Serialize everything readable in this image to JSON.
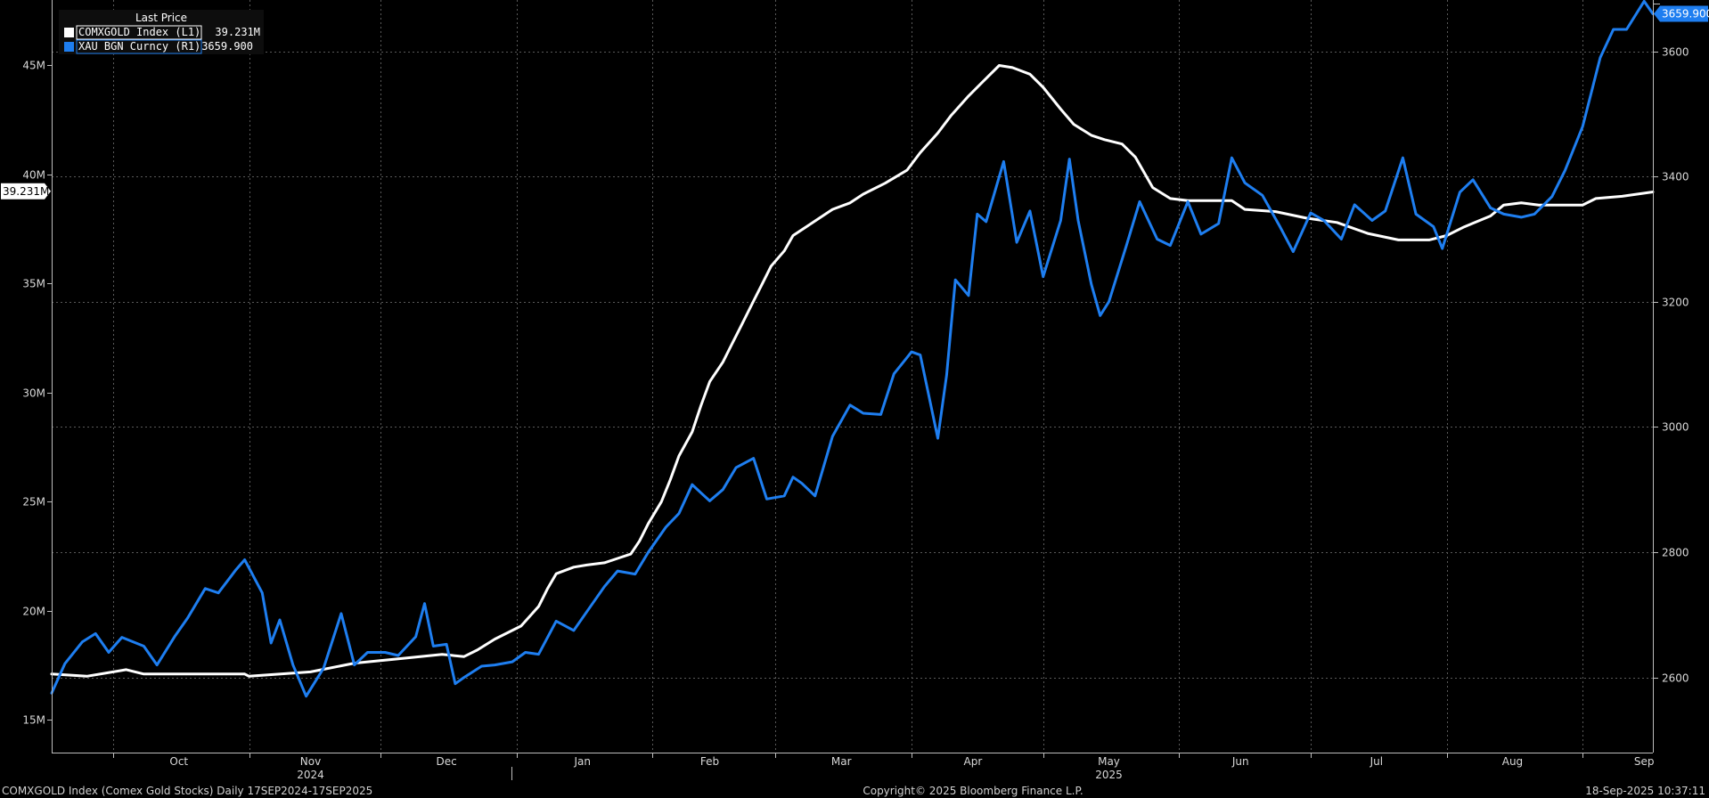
{
  "chart_data": {
    "type": "line",
    "legend": {
      "header": "Last Price",
      "placement": "top-left",
      "entries": [
        {
          "label": "COMXGOLD Index  (L1)",
          "value": "39.231M",
          "color": "#ffffff"
        },
        {
          "label": "XAU BGN Curncy  (R1)",
          "value": "3659.900",
          "color": "#1e7ef0"
        }
      ]
    },
    "x_range": [
      "2024-09-17",
      "2025-09-17"
    ],
    "month_ticks": [
      {
        "label": "Oct",
        "date": "2024-10-16"
      },
      {
        "label": "Nov",
        "date": "2024-11-15"
      },
      {
        "label": "Dec",
        "date": "2024-12-16"
      },
      {
        "label": "Jan",
        "date": "2025-01-16"
      },
      {
        "label": "Feb",
        "date": "2025-02-14"
      },
      {
        "label": "Mar",
        "date": "2025-03-16"
      },
      {
        "label": "Apr",
        "date": "2025-04-15"
      },
      {
        "label": "May",
        "date": "2025-05-16"
      },
      {
        "label": "Jun",
        "date": "2025-06-15"
      },
      {
        "label": "Jul",
        "date": "2025-07-16"
      },
      {
        "label": "Aug",
        "date": "2025-08-16"
      },
      {
        "label": "Sep",
        "date": "2025-09-15"
      }
    ],
    "month_boundaries": [
      "2024-10-01",
      "2024-11-01",
      "2024-12-01",
      "2025-01-01",
      "2025-02-01",
      "2025-03-01",
      "2025-04-01",
      "2025-05-01",
      "2025-06-01",
      "2025-07-01",
      "2025-08-01",
      "2025-09-01"
    ],
    "year_labels": [
      {
        "label": "2024",
        "date": "2024-11-15"
      },
      {
        "label": "2025",
        "date": "2025-05-16"
      }
    ],
    "left_axis": {
      "ylim": [
        13.5,
        48
      ],
      "ticks": [
        15,
        20,
        25,
        30,
        35,
        40,
        45
      ],
      "tick_labels": [
        "15M",
        "20M",
        "25M",
        "30M",
        "35M",
        "40M",
        "45M"
      ]
    },
    "right_axis": {
      "ylim": [
        2480,
        3682
      ],
      "ticks": [
        2600,
        2800,
        3000,
        3200,
        3400,
        3600
      ],
      "tick_labels": [
        "2600",
        "2800",
        "3000",
        "3200",
        "3400",
        "3600"
      ]
    },
    "grid": true,
    "last_value_tags": [
      {
        "series": "COMXGOLD Index",
        "text": "39.231M",
        "axis": "left",
        "value": 39.231
      },
      {
        "series": "XAU BGN Curncy",
        "text": "3659.900",
        "axis": "right",
        "value": 3659.9
      }
    ],
    "series": [
      {
        "name": "COMXGOLD Index",
        "axis": "left",
        "color": "#ffffff",
        "points": [
          [
            "2024-09-17",
            17.1
          ],
          [
            "2024-09-25",
            17.0
          ],
          [
            "2024-10-01",
            17.2
          ],
          [
            "2024-10-04",
            17.3
          ],
          [
            "2024-10-08",
            17.1
          ],
          [
            "2024-10-31",
            17.1
          ],
          [
            "2024-11-01",
            17.0
          ],
          [
            "2024-11-15",
            17.2
          ],
          [
            "2024-11-25",
            17.6
          ],
          [
            "2024-12-05",
            17.8
          ],
          [
            "2024-12-10",
            17.9
          ],
          [
            "2024-12-15",
            18.0
          ],
          [
            "2024-12-20",
            17.9
          ],
          [
            "2024-12-23",
            18.2
          ],
          [
            "2024-12-27",
            18.7
          ],
          [
            "2025-01-02",
            19.3
          ],
          [
            "2025-01-06",
            20.2
          ],
          [
            "2025-01-08",
            21.0
          ],
          [
            "2025-01-10",
            21.7
          ],
          [
            "2025-01-14",
            22.0
          ],
          [
            "2025-01-17",
            22.1
          ],
          [
            "2025-01-21",
            22.2
          ],
          [
            "2025-01-24",
            22.4
          ],
          [
            "2025-01-27",
            22.6
          ],
          [
            "2025-01-29",
            23.2
          ],
          [
            "2025-01-31",
            24.0
          ],
          [
            "2025-02-03",
            25.0
          ],
          [
            "2025-02-05",
            26.0
          ],
          [
            "2025-02-07",
            27.1
          ],
          [
            "2025-02-10",
            28.2
          ],
          [
            "2025-02-12",
            29.4
          ],
          [
            "2025-02-14",
            30.5
          ],
          [
            "2025-02-17",
            31.4
          ],
          [
            "2025-02-19",
            32.2
          ],
          [
            "2025-02-21",
            33.0
          ],
          [
            "2025-02-24",
            34.2
          ],
          [
            "2025-02-26",
            35.0
          ],
          [
            "2025-02-28",
            35.8
          ],
          [
            "2025-03-03",
            36.5
          ],
          [
            "2025-03-05",
            37.2
          ],
          [
            "2025-03-08",
            37.6
          ],
          [
            "2025-03-11",
            38.0
          ],
          [
            "2025-03-14",
            38.4
          ],
          [
            "2025-03-18",
            38.7
          ],
          [
            "2025-03-21",
            39.1
          ],
          [
            "2025-03-26",
            39.6
          ],
          [
            "2025-03-31",
            40.2
          ],
          [
            "2025-04-03",
            41.0
          ],
          [
            "2025-04-07",
            41.9
          ],
          [
            "2025-04-10",
            42.7
          ],
          [
            "2025-04-14",
            43.6
          ],
          [
            "2025-04-17",
            44.2
          ],
          [
            "2025-04-21",
            45.0
          ],
          [
            "2025-04-24",
            44.9
          ],
          [
            "2025-04-28",
            44.6
          ],
          [
            "2025-05-01",
            44.0
          ],
          [
            "2025-05-05",
            43.0
          ],
          [
            "2025-05-08",
            42.3
          ],
          [
            "2025-05-12",
            41.8
          ],
          [
            "2025-05-15",
            41.6
          ],
          [
            "2025-05-19",
            41.4
          ],
          [
            "2025-05-22",
            40.8
          ],
          [
            "2025-05-26",
            39.4
          ],
          [
            "2025-05-30",
            38.9
          ],
          [
            "2025-06-03",
            38.8
          ],
          [
            "2025-06-09",
            38.8
          ],
          [
            "2025-06-13",
            38.8
          ],
          [
            "2025-06-16",
            38.4
          ],
          [
            "2025-06-23",
            38.3
          ],
          [
            "2025-06-30",
            38.0
          ],
          [
            "2025-07-07",
            37.8
          ],
          [
            "2025-07-14",
            37.3
          ],
          [
            "2025-07-21",
            37.0
          ],
          [
            "2025-07-28",
            37.0
          ],
          [
            "2025-08-01",
            37.2
          ],
          [
            "2025-08-05",
            37.6
          ],
          [
            "2025-08-11",
            38.1
          ],
          [
            "2025-08-14",
            38.6
          ],
          [
            "2025-08-18",
            38.7
          ],
          [
            "2025-08-22",
            38.6
          ],
          [
            "2025-09-01",
            38.6
          ],
          [
            "2025-09-04",
            38.9
          ],
          [
            "2025-09-10",
            39.0
          ],
          [
            "2025-09-17",
            39.2
          ]
        ]
      },
      {
        "name": "XAU BGN Curncy",
        "axis": "right",
        "color": "#1e7ef0",
        "points": [
          [
            "2024-09-17",
            2575
          ],
          [
            "2024-09-20",
            2622
          ],
          [
            "2024-09-24",
            2657
          ],
          [
            "2024-09-27",
            2670
          ],
          [
            "2024-09-30",
            2640
          ],
          [
            "2024-10-03",
            2664
          ],
          [
            "2024-10-08",
            2650
          ],
          [
            "2024-10-11",
            2620
          ],
          [
            "2024-10-15",
            2665
          ],
          [
            "2024-10-18",
            2695
          ],
          [
            "2024-10-22",
            2742
          ],
          [
            "2024-10-25",
            2735
          ],
          [
            "2024-10-29",
            2772
          ],
          [
            "2024-10-31",
            2788
          ],
          [
            "2024-11-04",
            2735
          ],
          [
            "2024-11-06",
            2655
          ],
          [
            "2024-11-08",
            2692
          ],
          [
            "2024-11-11",
            2620
          ],
          [
            "2024-11-14",
            2570
          ],
          [
            "2024-11-18",
            2615
          ],
          [
            "2024-11-22",
            2702
          ],
          [
            "2024-11-25",
            2620
          ],
          [
            "2024-11-28",
            2640
          ],
          [
            "2024-12-02",
            2640
          ],
          [
            "2024-12-05",
            2635
          ],
          [
            "2024-12-09",
            2665
          ],
          [
            "2024-12-11",
            2718
          ],
          [
            "2024-12-13",
            2650
          ],
          [
            "2024-12-16",
            2653
          ],
          [
            "2024-12-18",
            2590
          ],
          [
            "2024-12-20",
            2600
          ],
          [
            "2024-12-24",
            2618
          ],
          [
            "2024-12-27",
            2620
          ],
          [
            "2024-12-31",
            2625
          ],
          [
            "2025-01-03",
            2640
          ],
          [
            "2025-01-06",
            2637
          ],
          [
            "2025-01-10",
            2690
          ],
          [
            "2025-01-14",
            2675
          ],
          [
            "2025-01-17",
            2705
          ],
          [
            "2025-01-21",
            2745
          ],
          [
            "2025-01-24",
            2770
          ],
          [
            "2025-01-28",
            2765
          ],
          [
            "2025-01-31",
            2800
          ],
          [
            "2025-02-04",
            2840
          ],
          [
            "2025-02-07",
            2862
          ],
          [
            "2025-02-10",
            2908
          ],
          [
            "2025-02-12",
            2895
          ],
          [
            "2025-02-14",
            2882
          ],
          [
            "2025-02-17",
            2900
          ],
          [
            "2025-02-20",
            2935
          ],
          [
            "2025-02-24",
            2950
          ],
          [
            "2025-02-27",
            2885
          ],
          [
            "2025-03-03",
            2890
          ],
          [
            "2025-03-05",
            2920
          ],
          [
            "2025-03-07",
            2910
          ],
          [
            "2025-03-10",
            2890
          ],
          [
            "2025-03-14",
            2985
          ],
          [
            "2025-03-18",
            3035
          ],
          [
            "2025-03-21",
            3022
          ],
          [
            "2025-03-25",
            3020
          ],
          [
            "2025-03-28",
            3085
          ],
          [
            "2025-04-01",
            3120
          ],
          [
            "2025-04-03",
            3115
          ],
          [
            "2025-04-07",
            2982
          ],
          [
            "2025-04-09",
            3083
          ],
          [
            "2025-04-11",
            3235
          ],
          [
            "2025-04-14",
            3210
          ],
          [
            "2025-04-16",
            3340
          ],
          [
            "2025-04-18",
            3328
          ],
          [
            "2025-04-22",
            3424
          ],
          [
            "2025-04-25",
            3295
          ],
          [
            "2025-04-28",
            3345
          ],
          [
            "2025-05-01",
            3240
          ],
          [
            "2025-05-05",
            3330
          ],
          [
            "2025-05-07",
            3428
          ],
          [
            "2025-05-09",
            3330
          ],
          [
            "2025-05-12",
            3228
          ],
          [
            "2025-05-14",
            3178
          ],
          [
            "2025-05-16",
            3200
          ],
          [
            "2025-05-20",
            3290
          ],
          [
            "2025-05-23",
            3360
          ],
          [
            "2025-05-27",
            3300
          ],
          [
            "2025-05-30",
            3290
          ],
          [
            "2025-06-03",
            3360
          ],
          [
            "2025-06-06",
            3308
          ],
          [
            "2025-06-10",
            3325
          ],
          [
            "2025-06-13",
            3430
          ],
          [
            "2025-06-16",
            3390
          ],
          [
            "2025-06-20",
            3370
          ],
          [
            "2025-06-24",
            3320
          ],
          [
            "2025-06-27",
            3280
          ],
          [
            "2025-07-01",
            3342
          ],
          [
            "2025-07-04",
            3330
          ],
          [
            "2025-07-08",
            3300
          ],
          [
            "2025-07-11",
            3355
          ],
          [
            "2025-07-15",
            3330
          ],
          [
            "2025-07-18",
            3345
          ],
          [
            "2025-07-22",
            3430
          ],
          [
            "2025-07-25",
            3340
          ],
          [
            "2025-07-29",
            3320
          ],
          [
            "2025-07-31",
            3285
          ],
          [
            "2025-08-04",
            3375
          ],
          [
            "2025-08-07",
            3395
          ],
          [
            "2025-08-11",
            3350
          ],
          [
            "2025-08-14",
            3340
          ],
          [
            "2025-08-18",
            3335
          ],
          [
            "2025-08-21",
            3340
          ],
          [
            "2025-08-25",
            3368
          ],
          [
            "2025-08-28",
            3410
          ],
          [
            "2025-09-01",
            3480
          ],
          [
            "2025-09-03",
            3535
          ],
          [
            "2025-09-05",
            3590
          ],
          [
            "2025-09-08",
            3635
          ],
          [
            "2025-09-11",
            3635
          ],
          [
            "2025-09-15",
            3680
          ],
          [
            "2025-09-17",
            3660
          ]
        ]
      }
    ]
  },
  "footer": {
    "left": "COMXGOLD Index (Comex Gold Stocks)  Daily 17SEP2024-17SEP2025",
    "center": "Copyright© 2025 Bloomberg Finance L.P.",
    "right": "18-Sep-2025 10:37:11"
  }
}
